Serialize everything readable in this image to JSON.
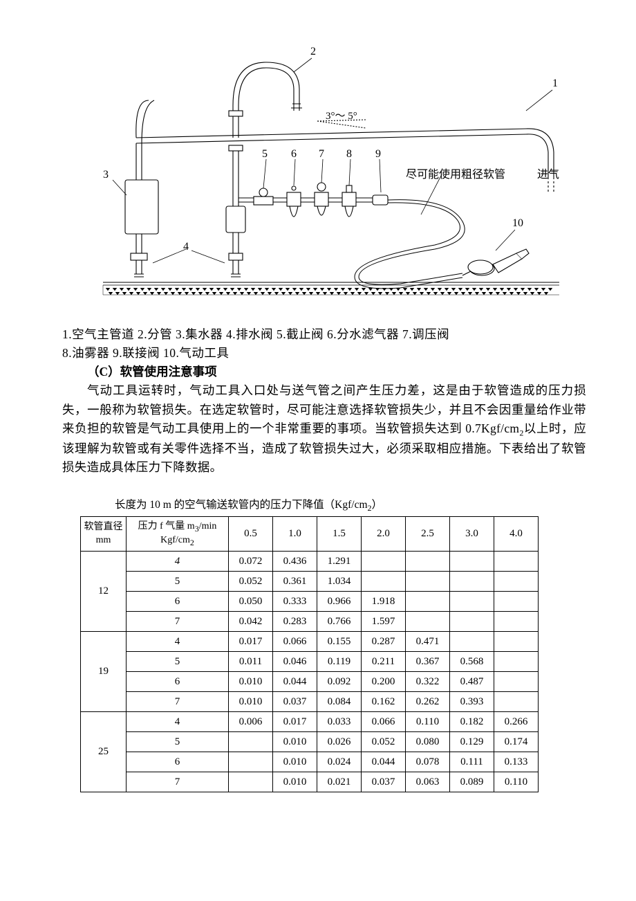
{
  "diagram": {
    "labels": {
      "n1": "1",
      "n2": "2",
      "n3": "3",
      "n4": "4",
      "n5": "5",
      "n6": "6",
      "n7": "7",
      "n8": "8",
      "n9": "9",
      "n10": "10"
    },
    "angle_text": "3°～ 5°",
    "hose_note": "尽可能使用粗径软管",
    "inlet": "进气",
    "stroke": "#000000",
    "stroke_thin": 1.1,
    "fill_bg": "#ffffff"
  },
  "legend": {
    "line1": "1.空气主管道 2.分管 3.集水器 4.排水阀 5.截止阀 6.分水滤气器 7.调压阀",
    "line2": "8.油雾器  9.联接阀  10.气动工具"
  },
  "heading_c": "（C）软管使用注意事项",
  "paragraph": "气动工具运转时，气动工具入口处与送气管之间产生压力差，这是由于软管造成的压力损失，一般称为软管损失。在选定软管时，尽可能注意选择软管损失少，并且不会因重量给作业带来负担的软管是气动工具使用上的一个非常重要的事项。当软管损失达到 0.7Kgf/cm",
  "paragraph_after": "以上时，应该理解为软管或有关零件选择不当，造成了软管损失过大，必须采取相应措施。下表给出了软管损失造成具体压力下降数据。",
  "table": {
    "caption_prefix": "长度为 10 m 的空气输送软管内的压力下降值（Kgf/cm",
    "caption_suffix": "）",
    "header": {
      "diam_l1": "软管直径",
      "diam_l2": "mm",
      "press_l1": "压力 f  气量 m",
      "press_unit_sup": "3",
      "press_l1b": "/min",
      "press_l2": "Kgf/cm",
      "press_l2_sub": "2",
      "flows": [
        "0.5",
        "1.0",
        "1.5",
        "2.0",
        "2.5",
        "3.0",
        "4.0"
      ]
    },
    "groups": [
      {
        "diam": "12",
        "rows": [
          {
            "p": "4",
            "italic": true,
            "v": [
              "0.072",
              "0.436",
              "1.291",
              "",
              "",
              "",
              ""
            ]
          },
          {
            "p": "5",
            "italic": false,
            "v": [
              "0.052",
              "0.361",
              "1.034",
              "",
              "",
              "",
              ""
            ]
          },
          {
            "p": "6",
            "italic": false,
            "v": [
              "0.050",
              "0.333",
              "0.966",
              "1.918",
              "",
              "",
              ""
            ]
          },
          {
            "p": "7",
            "italic": false,
            "v": [
              "0.042",
              "0.283",
              "0.766",
              "1.597",
              "",
              "",
              ""
            ]
          }
        ]
      },
      {
        "diam": "19",
        "rows": [
          {
            "p": "4",
            "italic": false,
            "v": [
              "0.017",
              "0.066",
              "0.155",
              "0.287",
              "0.471",
              "",
              ""
            ]
          },
          {
            "p": "5",
            "italic": false,
            "v": [
              "0.011",
              "0.046",
              "0.119",
              "0.211",
              "0.367",
              "0.568",
              ""
            ]
          },
          {
            "p": "6",
            "italic": false,
            "v": [
              "0.010",
              "0.044",
              "0.092",
              "0.200",
              "0.322",
              "0.487",
              ""
            ]
          },
          {
            "p": "7",
            "italic": false,
            "v": [
              "0.010",
              "0.037",
              "0.084",
              "0.162",
              "0.262",
              "0.393",
              ""
            ]
          }
        ]
      },
      {
        "diam": "25",
        "rows": [
          {
            "p": "4",
            "italic": false,
            "v": [
              "0.006",
              "0.017",
              "0.033",
              "0.066",
              "0.110",
              "0.182",
              "0.266"
            ]
          },
          {
            "p": "5",
            "italic": false,
            "v": [
              "",
              "0.010",
              "0.026",
              "0.052",
              "0.080",
              "0.129",
              "0.174"
            ]
          },
          {
            "p": "6",
            "italic": false,
            "v": [
              "",
              "0.010",
              "0.024",
              "0.044",
              "0.078",
              "0.111",
              "0.133"
            ]
          },
          {
            "p": "7",
            "italic": false,
            "v": [
              "",
              "0.010",
              "0.021",
              "0.037",
              "0.063",
              "0.089",
              "0.110"
            ]
          }
        ]
      }
    ]
  }
}
